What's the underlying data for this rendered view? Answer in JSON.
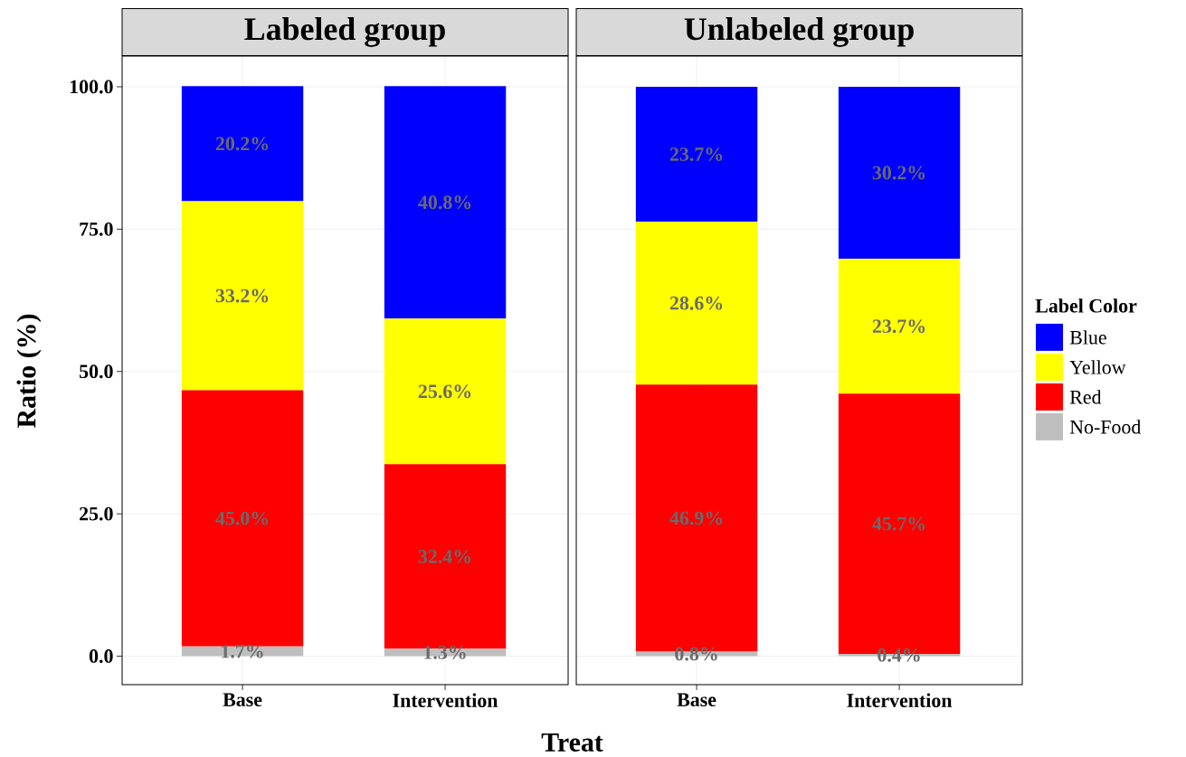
{
  "chart_data": [
    {
      "type": "bar",
      "stacked": true,
      "title": "Labeled group",
      "xlabel": "Treat",
      "ylabel": "Ratio (%)",
      "categories": [
        "Base",
        "Intervention"
      ],
      "series": [
        {
          "color": "#bebebe",
          "values": [
            1.7,
            1.3
          ],
          "value_labels": [
            "1.7%",
            "1.3%"
          ]
        },
        {
          "color": "#ff0000",
          "values": [
            45.0,
            32.4
          ],
          "value_labels": [
            "45.0%",
            "32.4%"
          ]
        },
        {
          "color": "#ffff00",
          "values": [
            33.2,
            25.6
          ],
          "value_labels": [
            "33.2%",
            "25.6%"
          ]
        },
        {
          "color": "#0000ff",
          "values": [
            20.2,
            40.8
          ],
          "value_labels": [
            "20.2%",
            "40.8%"
          ]
        }
      ],
      "ylim": [
        -5,
        105.4
      ],
      "yticks": [
        {
          "value": 0,
          "label": "0.0"
        },
        {
          "value": 25,
          "label": "25.0"
        },
        {
          "value": 50,
          "label": "50.0"
        },
        {
          "value": 75,
          "label": "75.0"
        },
        {
          "value": 100,
          "label": "100.0"
        }
      ],
      "grid": true
    },
    {
      "type": "bar",
      "stacked": true,
      "title": "Unlabeled group",
      "categories": [
        "Base",
        "Intervention"
      ],
      "series": [
        {
          "name": "No-Food",
          "color": "#bebebe",
          "values": [
            0.8,
            0.4
          ],
          "value_labels": [
            "0.8%",
            "0.4%"
          ]
        },
        {
          "name": "Red",
          "color": "#ff0000",
          "values": [
            46.9,
            45.7
          ],
          "value_labels": [
            "46.9%",
            "45.7%"
          ]
        },
        {
          "name": "Yellow",
          "color": "#ffff00",
          "values": [
            28.6,
            23.7
          ],
          "value_labels": [
            "28.6%",
            "23.7%"
          ]
        },
        {
          "name": "Blue",
          "color": "#0000ff",
          "values": [
            23.7,
            30.2
          ],
          "value_labels": [
            "23.7%",
            "30.2%"
          ]
        }
      ],
      "ylim": [
        -5,
        105.4
      ],
      "yticks": [
        0,
        25,
        50,
        75,
        100
      ],
      "grid": true,
      "tick_labels": "x",
      "legend": "right",
      "legend_title": "Label Color"
    }
  ]
}
